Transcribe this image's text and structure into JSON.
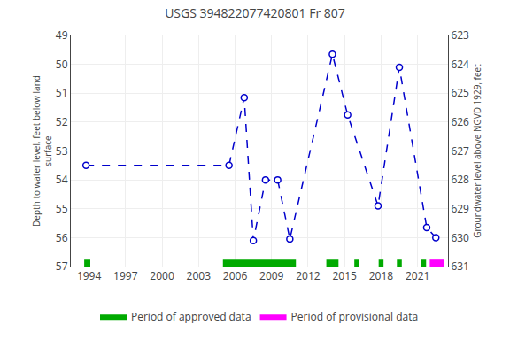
{
  "chart_data": {
    "type": "line",
    "title": "USGS 394822077420801 Fr 807",
    "x": [
      1993.75,
      2005.5,
      2006.75,
      2007.5,
      2008.5,
      2009.5,
      2010.5,
      2014.0,
      2015.25,
      2017.75,
      2019.5,
      2021.75,
      2022.5
    ],
    "values": [
      53.5,
      53.5,
      51.15,
      56.1,
      54.0,
      54.0,
      56.05,
      49.65,
      51.75,
      54.9,
      50.1,
      55.65,
      56.0
    ],
    "color": "#0000cc",
    "marker": "circle",
    "line_style": "dashed",
    "ylabel": "Depth to water level, feet below land\nsurface",
    "y2label": "Groundwater level above NGVD 1929, feet",
    "ylim": [
      57.0,
      49.0
    ],
    "yticks": [
      49,
      50,
      51,
      52,
      53,
      54,
      55,
      56,
      57
    ],
    "y2lim": [
      631.0,
      623.0
    ],
    "y2ticks": [
      623,
      624,
      625,
      626,
      627,
      628,
      629,
      630,
      631
    ],
    "xlim": [
      1992.5,
      2023.5
    ],
    "xticks": [
      1994,
      1997,
      2000,
      2003,
      2006,
      2009,
      2012,
      2015,
      2018,
      2021
    ],
    "grid": true,
    "legend": "bottom",
    "periods": [
      {
        "name": "Period of approved data",
        "color": "#00aa00",
        "ranges": [
          [
            1993.6,
            1994.1
          ],
          [
            2005.0,
            2011.0
          ],
          [
            2013.5,
            2014.5
          ],
          [
            2015.8,
            2016.2
          ],
          [
            2017.8,
            2018.2
          ],
          [
            2019.3,
            2019.7
          ],
          [
            2021.3,
            2021.7
          ]
        ]
      },
      {
        "name": "Period of provisional data",
        "color": "#ff00ff",
        "ranges": [
          [
            2022.0,
            2023.2
          ]
        ]
      }
    ]
  }
}
